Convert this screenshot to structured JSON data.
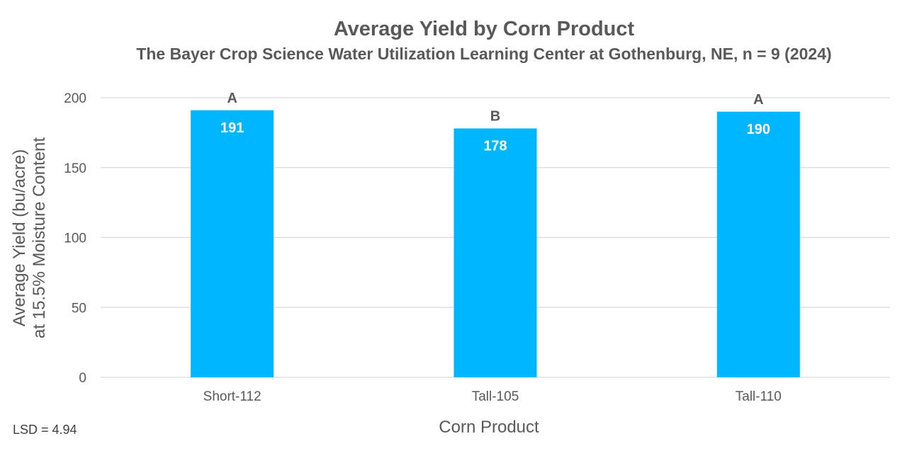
{
  "chart_data": {
    "type": "bar",
    "title": "Average Yield by Corn Product",
    "subtitle": "The Bayer Crop Science Water Utilization Learning Center at Gothenburg, NE, n = 9 (2024)",
    "xlabel": "Corn Product",
    "ylabel_line1": "Average Yield (bu/acre)",
    "ylabel_line2": "at 15.5% Moisture Content",
    "categories": [
      "Short-112",
      "Tall-105",
      "Tall-110"
    ],
    "values": [
      191,
      178,
      190
    ],
    "significance_letters": [
      "A",
      "B",
      "A"
    ],
    "ylim": [
      0,
      200
    ],
    "yticks": [
      0,
      50,
      100,
      150,
      200
    ],
    "grid": true,
    "bar_color": "#00B7FF",
    "grid_color": "#D9D9D9"
  },
  "note": "LSD = 4.94"
}
